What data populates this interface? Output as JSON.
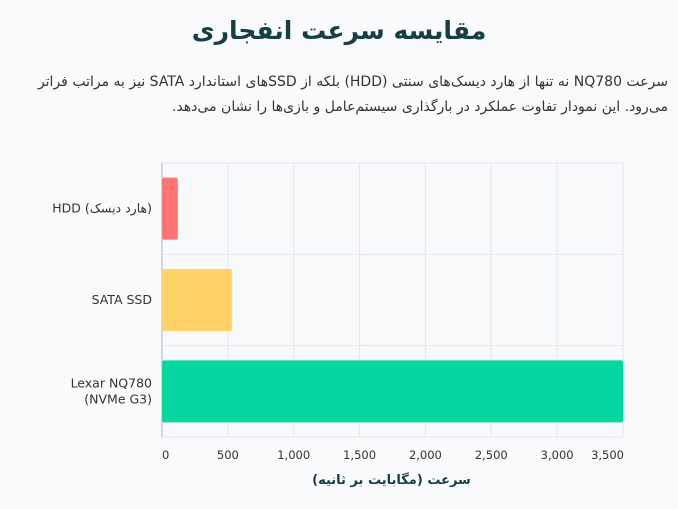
{
  "page": {
    "title": "مقایسه سرعت انفجاری",
    "description": "سرعت NQ780 نه تنها از هارد دیسک‌های سنتی (HDD) بلکه از SSDهای استاندارد SATA نیز به مراتب فراتر می‌رود. این نمودار تفاوت عملکرد در بارگذاری سیستم‌عامل و بازی‌ها را نشان می‌دهد."
  },
  "chart_data": {
    "type": "bar",
    "orientation": "horizontal",
    "categories": [
      [
        "HDD (هارد دیسک)"
      ],
      [
        "SATA SSD"
      ],
      [
        "Lexar NQ780",
        "(NVMe G3)"
      ]
    ],
    "values": [
      120,
      530,
      3500
    ],
    "colors": [
      "#ff7474",
      "#ffd166",
      "#06d6a0"
    ],
    "xlabel": "سرعت (مگابایت بر ثانیه)",
    "xlim": [
      0,
      3500
    ],
    "xticks": [
      0,
      500,
      1000,
      1500,
      2000,
      2500,
      3000,
      3500
    ],
    "xtick_labels": [
      "0",
      "500",
      "1,000",
      "1,500",
      "2,000",
      "2,500",
      "3,000",
      "3,500"
    ],
    "grid": true,
    "grid_color": "#e5e7eb",
    "axis_color": "#c8ccd0"
  }
}
